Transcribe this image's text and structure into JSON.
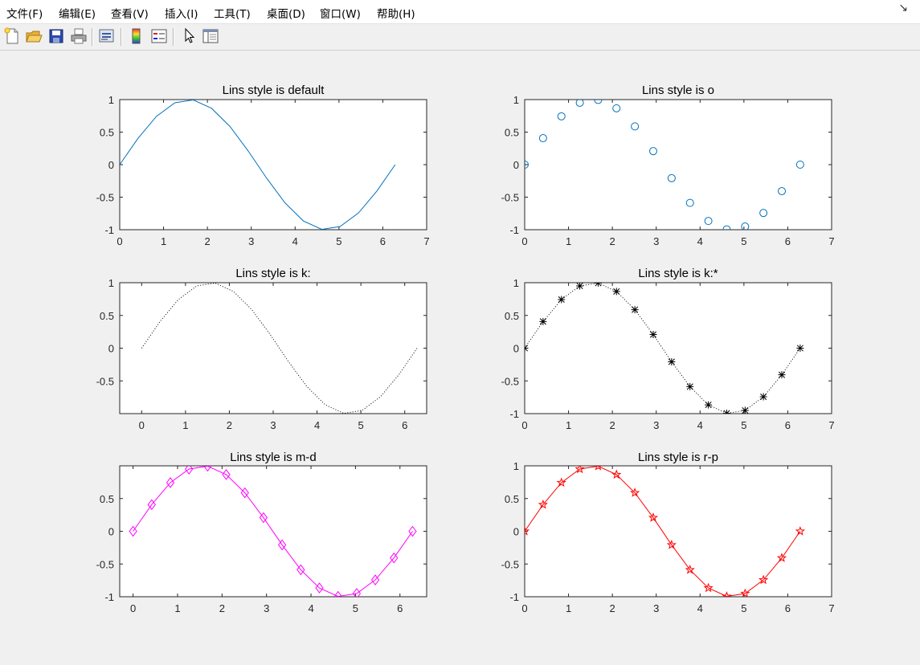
{
  "menu": {
    "items": [
      "文件(F)",
      "编辑(E)",
      "查看(V)",
      "插入(I)",
      "工具(T)",
      "桌面(D)",
      "窗口(W)",
      "帮助(H)"
    ],
    "overflow_arrow": "↘"
  },
  "toolbar": {
    "icons": [
      "new-file-icon",
      "open-folder-icon",
      "save-icon",
      "print-icon",
      "link-plot-icon",
      "colorbar-icon",
      "legend-icon",
      "pointer-icon",
      "property-inspector-icon"
    ]
  },
  "chart_data": [
    {
      "type": "line",
      "title": "Lins style is default",
      "style": "-",
      "color": "#0072bd",
      "marker": "none",
      "x": [
        0,
        0.419,
        0.838,
        1.257,
        1.676,
        2.094,
        2.513,
        2.932,
        3.351,
        3.77,
        4.189,
        4.608,
        5.027,
        5.445,
        5.864,
        6.283
      ],
      "y": [
        0,
        0.407,
        0.743,
        0.951,
        0.995,
        0.866,
        0.588,
        0.208,
        -0.208,
        -0.588,
        -0.866,
        -0.995,
        -0.951,
        -0.743,
        -0.407,
        0
      ],
      "xlim": [
        0,
        7
      ],
      "ylim": [
        -1,
        1
      ],
      "xticks": [
        "0",
        "1",
        "2",
        "3",
        "4",
        "5",
        "6",
        "7"
      ],
      "yticks": [
        "1",
        "0.5",
        "0",
        "-0.5",
        "-1"
      ]
    },
    {
      "type": "scatter",
      "title": "Lins style is o",
      "style": "none",
      "color": "#0072bd",
      "marker": "circle",
      "x": [
        0,
        0.419,
        0.838,
        1.257,
        1.676,
        2.094,
        2.513,
        2.932,
        3.351,
        3.77,
        4.189,
        4.608,
        5.027,
        5.445,
        5.864,
        6.283
      ],
      "y": [
        0,
        0.407,
        0.743,
        0.951,
        0.995,
        0.866,
        0.588,
        0.208,
        -0.208,
        -0.588,
        -0.866,
        -0.995,
        -0.951,
        -0.743,
        -0.407,
        0
      ],
      "xlim": [
        0,
        7
      ],
      "ylim": [
        -1,
        1
      ],
      "xticks": [
        "0",
        "1",
        "2",
        "3",
        "4",
        "5",
        "6",
        "7"
      ],
      "yticks": [
        "1",
        "0.5",
        "0",
        "-0.5",
        "-1"
      ]
    },
    {
      "type": "line",
      "title": "Lins style is k:",
      "style": "dotted",
      "color": "#000000",
      "marker": "none",
      "x": [
        0,
        0.419,
        0.838,
        1.257,
        1.676,
        2.094,
        2.513,
        2.932,
        3.351,
        3.77,
        4.189,
        4.608,
        5.027,
        5.445,
        5.864,
        6.283
      ],
      "y": [
        0,
        0.407,
        0.743,
        0.951,
        0.995,
        0.866,
        0.588,
        0.208,
        -0.208,
        -0.588,
        -0.866,
        -0.995,
        -0.951,
        -0.743,
        -0.407,
        0
      ],
      "xlim": [
        -0.5,
        6.5
      ],
      "ylim": [
        -1,
        1
      ],
      "xticks": [
        "0",
        "1",
        "2",
        "3",
        "4",
        "5",
        "6"
      ],
      "yticks": [
        "1",
        "0.5",
        "0",
        "-0.5"
      ]
    },
    {
      "type": "line",
      "title": "Lins style is k:*",
      "style": "dotted",
      "color": "#000000",
      "marker": "asterisk",
      "x": [
        0,
        0.419,
        0.838,
        1.257,
        1.676,
        2.094,
        2.513,
        2.932,
        3.351,
        3.77,
        4.189,
        4.608,
        5.027,
        5.445,
        5.864,
        6.283
      ],
      "y": [
        0,
        0.407,
        0.743,
        0.951,
        0.995,
        0.866,
        0.588,
        0.208,
        -0.208,
        -0.588,
        -0.866,
        -0.995,
        -0.951,
        -0.743,
        -0.407,
        0
      ],
      "xlim": [
        0,
        7
      ],
      "ylim": [
        -1,
        1
      ],
      "xticks": [
        "0",
        "1",
        "2",
        "3",
        "4",
        "5",
        "6",
        "7"
      ],
      "yticks": [
        "1",
        "0.5",
        "0",
        "-0.5",
        "-1"
      ]
    },
    {
      "type": "line",
      "title": "Lins style is m-d",
      "style": "-",
      "color": "#ff00ff",
      "marker": "diamond",
      "x": [
        0,
        0.419,
        0.838,
        1.257,
        1.676,
        2.094,
        2.513,
        2.932,
        3.351,
        3.77,
        4.189,
        4.608,
        5.027,
        5.445,
        5.864,
        6.283
      ],
      "y": [
        0,
        0.407,
        0.743,
        0.951,
        0.995,
        0.866,
        0.588,
        0.208,
        -0.208,
        -0.588,
        -0.866,
        -0.995,
        -0.951,
        -0.743,
        -0.407,
        0
      ],
      "xlim": [
        -0.3,
        6.6
      ],
      "ylim": [
        -1,
        1
      ],
      "xticks": [
        "0",
        "1",
        "2",
        "3",
        "4",
        "5",
        "6"
      ],
      "yticks": [
        "0.5",
        "0",
        "-0.5",
        "-1"
      ]
    },
    {
      "type": "line",
      "title": "Lins style is r-p",
      "style": "-",
      "color": "#ff0000",
      "marker": "pentagram",
      "x": [
        0,
        0.419,
        0.838,
        1.257,
        1.676,
        2.094,
        2.513,
        2.932,
        3.351,
        3.77,
        4.189,
        4.608,
        5.027,
        5.445,
        5.864,
        6.283
      ],
      "y": [
        0,
        0.407,
        0.743,
        0.951,
        0.995,
        0.866,
        0.588,
        0.208,
        -0.208,
        -0.588,
        -0.866,
        -0.995,
        -0.951,
        -0.743,
        -0.407,
        0
      ],
      "xlim": [
        0,
        7
      ],
      "ylim": [
        -1,
        1
      ],
      "xticks": [
        "0",
        "1",
        "2",
        "3",
        "4",
        "5",
        "6",
        "7"
      ],
      "yticks": [
        "1",
        "0.5",
        "0",
        "-0.5",
        "-1"
      ]
    }
  ]
}
